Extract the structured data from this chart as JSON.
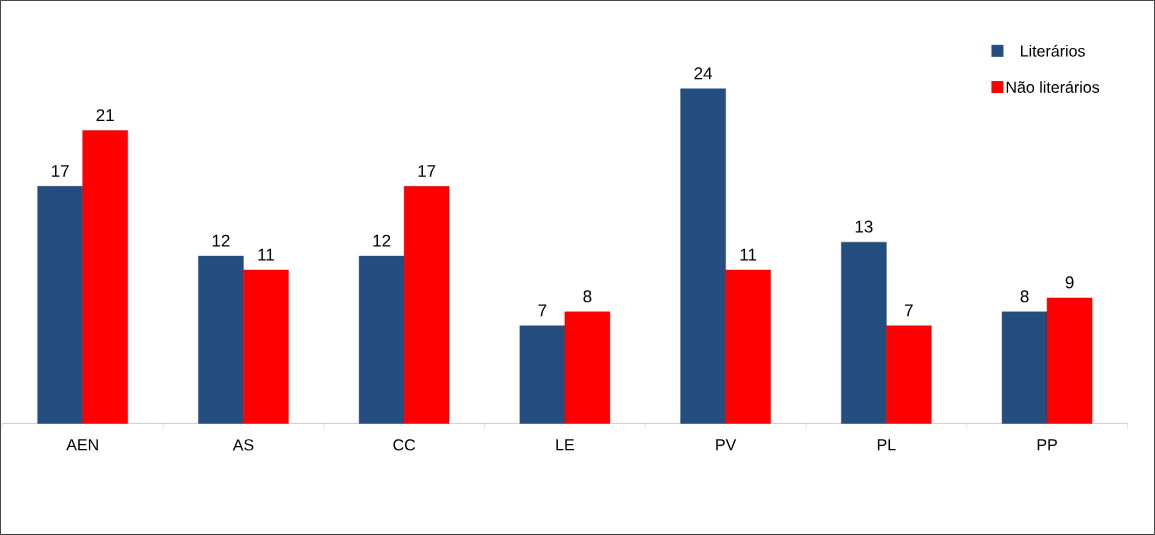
{
  "chart_data": {
    "type": "bar",
    "categories": [
      "AEN",
      "AS",
      "CC",
      "LE",
      "PV",
      "PL",
      "PP"
    ],
    "series": [
      {
        "name": "Literários",
        "color": "#254e80",
        "values": [
          17,
          12,
          12,
          7,
          24,
          13,
          8
        ]
      },
      {
        "name": "Não literários",
        "color": "#ff0000",
        "values": [
          21,
          11,
          17,
          8,
          11,
          7,
          9
        ]
      }
    ],
    "data_labels": true,
    "legend": "top right"
  }
}
